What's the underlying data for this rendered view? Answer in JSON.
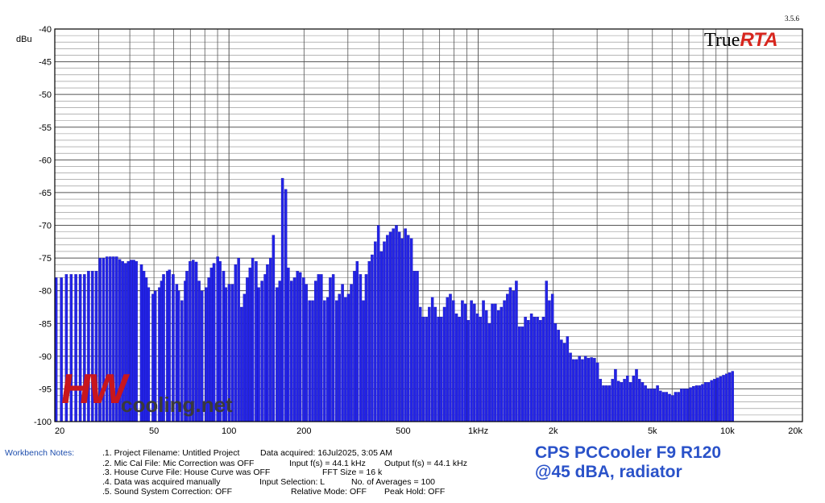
{
  "chart_data": {
    "type": "bar",
    "ylabel": "dBu",
    "xscale": "log",
    "xlim": [
      20,
      20000
    ],
    "ylim": [
      -100,
      -40
    ],
    "grid": true,
    "bar_color": "#2323e6",
    "y_ticks": [
      -40,
      -45,
      -50,
      -55,
      -60,
      -65,
      -70,
      -75,
      -80,
      -85,
      -90,
      -95,
      -100
    ],
    "x_ticks": [
      {
        "value": 20,
        "label": "20"
      },
      {
        "value": 50,
        "label": "50"
      },
      {
        "value": 100,
        "label": "100"
      },
      {
        "value": 200,
        "label": "200"
      },
      {
        "value": 500,
        "label": "500"
      },
      {
        "value": 1000,
        "label": "1kHz"
      },
      {
        "value": 2000,
        "label": "2k"
      },
      {
        "value": 5000,
        "label": "5k"
      },
      {
        "value": 10000,
        "label": "10k"
      },
      {
        "value": 20000,
        "label": "20k"
      }
    ],
    "frequency_hz": [
      20,
      21,
      22,
      23,
      24,
      25,
      26,
      27,
      28,
      29,
      30,
      31,
      32,
      33,
      34,
      35,
      36,
      37,
      38,
      39,
      40,
      41,
      42,
      44,
      45,
      46,
      47,
      49,
      50,
      52,
      53,
      54,
      56,
      57,
      59,
      61,
      62,
      64,
      66,
      67,
      69,
      71,
      73,
      75,
      77,
      80,
      82,
      84,
      86,
      89,
      91,
      94,
      96,
      99,
      102,
      105,
      108,
      111,
      114,
      117,
      120,
      123,
      127,
      130,
      134,
      138,
      141,
      145,
      149,
      154,
      158,
      162,
      167,
      171,
      176,
      181,
      186,
      191,
      197,
      202,
      208,
      214,
      220,
      226,
      232,
      239,
      246,
      252,
      259,
      267,
      274,
      282,
      290,
      298,
      306,
      315,
      323,
      333,
      342,
      351,
      361,
      371,
      382,
      393,
      404,
      415,
      427,
      439,
      451,
      464,
      477,
      490,
      504,
      518,
      533,
      548,
      563,
      579,
      595,
      612,
      629,
      647,
      665,
      684,
      703,
      723,
      743,
      764,
      786,
      808,
      830,
      854,
      878,
      902,
      928,
      954,
      981,
      1008,
      1037,
      1066,
      1096,
      1126,
      1158,
      1191,
      1224,
      1259,
      1294,
      1330,
      1368,
      1406,
      1446,
      1487,
      1528,
      1571,
      1616,
      1661,
      1708,
      1756,
      1805,
      1856,
      1908,
      1962,
      2017,
      2074,
      2132,
      2192,
      2254,
      2317,
      2382,
      2449,
      2518,
      2589,
      2662,
      2737,
      2814,
      2893,
      2974,
      3058,
      3144,
      3232,
      3323,
      3417,
      3513,
      3611,
      3713,
      3817,
      3925,
      4035,
      4149,
      4265,
      4385,
      4509,
      4635,
      4766,
      4900,
      5038,
      5179,
      5325,
      5475,
      5629,
      5787,
      5950,
      6117,
      6289,
      6466,
      6648,
      6835,
      7027,
      7225,
      7428,
      7637,
      7851,
      8072,
      8299,
      8533,
      8773,
      9019,
      9273,
      9534,
      9802,
      10078,
      10361,
      10653,
      10952,
      11260,
      11577,
      11903,
      12238,
      12582,
      12936,
      13300,
      13674,
      14058,
      14454,
      14860,
      15278,
      15708,
      16150,
      16605,
      17072,
      17552,
      18046,
      18554,
      19076,
      19613
    ],
    "level_dbu": [
      -78.0,
      -78.0,
      -77.5,
      -77.5,
      -77.5,
      -77.5,
      -77.5,
      -77.0,
      -77.0,
      -77.0,
      -75.0,
      -75.0,
      -74.8,
      -74.8,
      -74.8,
      -74.8,
      -75.2,
      -75.5,
      -75.8,
      -75.5,
      -75.3,
      -75.3,
      -75.5,
      -76.0,
      -77.0,
      -78.0,
      -79.5,
      -80.5,
      -80.0,
      -79.5,
      -78.5,
      -77.5,
      -77.0,
      -76.8,
      -77.5,
      -79.0,
      -80.0,
      -81.5,
      -78.5,
      -77.0,
      -75.5,
      -75.3,
      -75.6,
      -78.5,
      -80.0,
      -79.5,
      -78.0,
      -76.5,
      -75.8,
      -74.8,
      -75.5,
      -77.0,
      -79.5,
      -79.0,
      -79.0,
      -76.0,
      -75.0,
      -82.5,
      -80.5,
      -78.0,
      -76.5,
      -75.0,
      -75.5,
      -79.5,
      -78.5,
      -77.5,
      -76.0,
      -75.0,
      -71.5,
      -79.5,
      -78.5,
      -62.8,
      -64.5,
      -76.5,
      -78.5,
      -78.0,
      -77.0,
      -77.2,
      -78.0,
      -79.0,
      -81.5,
      -81.5,
      -78.5,
      -77.5,
      -77.5,
      -81.5,
      -81.0,
      -78.0,
      -77.5,
      -81.5,
      -80.5,
      -79.0,
      -81.0,
      -80.5,
      -79.0,
      -77.0,
      -75.5,
      -77.5,
      -81.5,
      -77.5,
      -75.5,
      -74.5,
      -72.5,
      -70.0,
      -74.0,
      -72.5,
      -71.5,
      -71.0,
      -70.5,
      -70.0,
      -71.0,
      -72.0,
      -70.5,
      -71.5,
      -72.0,
      -77.0,
      -77.0,
      -82.5,
      -84.0,
      -84.0,
      -82.5,
      -81.0,
      -82.5,
      -84.0,
      -84.0,
      -82.5,
      -81.0,
      -80.5,
      -81.5,
      -83.5,
      -84.0,
      -81.5,
      -82.0,
      -84.5,
      -81.5,
      -82.0,
      -83.5,
      -84.0,
      -81.5,
      -83.0,
      -85.0,
      -82.0,
      -82.0,
      -83.0,
      -82.5,
      -81.5,
      -80.5,
      -79.5,
      -80.0,
      -78.5,
      -85.5,
      -85.5,
      -84.0,
      -84.5,
      -83.5,
      -84.0,
      -84.0,
      -84.5,
      -84.0,
      -78.5,
      -81.5,
      -80.5,
      -85.0,
      -86.0,
      -87.5,
      -88.0,
      -87.0,
      -89.5,
      -90.5,
      -90.5,
      -90.0,
      -90.5,
      -90.0,
      -90.3,
      -90.2,
      -90.3,
      -91.0,
      -93.5,
      -94.5,
      -94.5,
      -94.5,
      -93.5,
      -92.0,
      -93.8,
      -94.0,
      -93.5,
      -93.0,
      -94.0,
      -93.0,
      -92.0,
      -93.5,
      -94.0,
      -94.5,
      -95.0,
      -95.0,
      -95.0,
      -94.5,
      -95.3,
      -95.5,
      -95.5,
      -95.8,
      -96.0,
      -95.5,
      -95.5,
      -95.0,
      -95.0,
      -95.0,
      -94.8,
      -94.6,
      -94.5,
      -94.5,
      -94.3,
      -94.0,
      -94.0,
      -93.7,
      -93.5,
      -93.3,
      -93.1,
      -92.9,
      -92.7,
      -92.5,
      -92.3
    ]
  },
  "header": {
    "version": "3.5.6",
    "logo_true": "True",
    "logo_rta": "RTA"
  },
  "watermark": {
    "hw": "HW",
    "cooling": "cooling.net"
  },
  "notes": {
    "label": "Workbench Notes:",
    "project": ".1. Project Filename: Untitled Project",
    "data_acquired": "Data acquired: 16Jul2025, 3:05 AM",
    "mic_cal": ".2. Mic Cal File: Mic Correction was OFF",
    "input_fs": "Input f(s) = 44.1 kHz",
    "output_fs": "Output f(s) = 44.1 kHz",
    "house_curve": ".3. House Curve File: House Curve was OFF",
    "fft_size": "FFT Size = 16 k",
    "manual": ".4. Data was acquired manually",
    "input_sel": "Input Selection: L",
    "averages": "No. of Averages = 100",
    "sound_sys": ".5. Sound System Correction: OFF",
    "relative": "Relative Mode:  OFF",
    "peak_hold": "Peak Hold: OFF"
  },
  "title": {
    "line1": "CPS PCCooler F9 R120",
    "line2": "@45 dBA, radiator"
  }
}
